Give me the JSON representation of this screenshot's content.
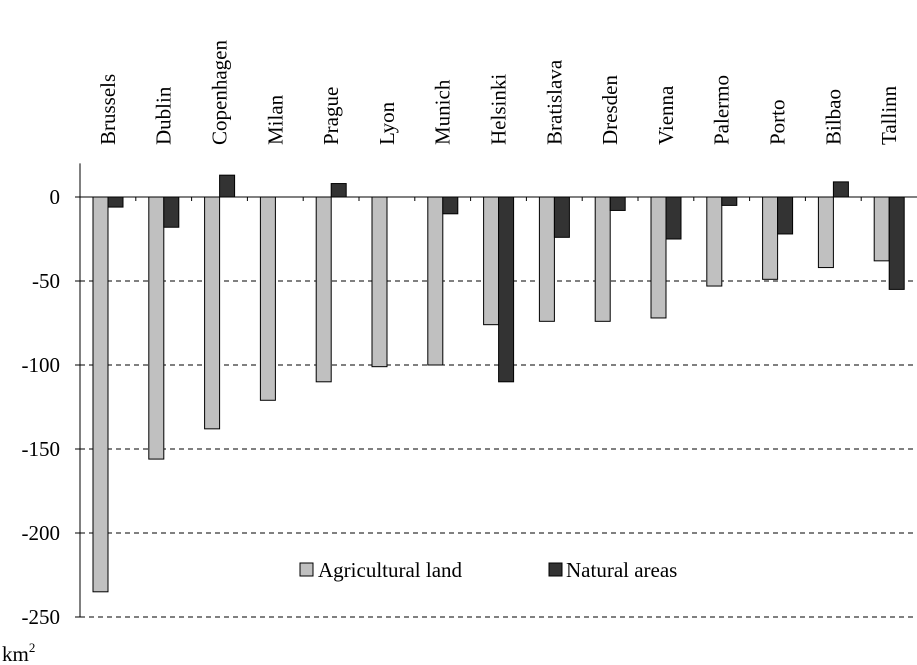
{
  "chart_data": {
    "type": "bar",
    "categories": [
      "Brussels",
      "Dublin",
      "Copenhagen",
      "Milan",
      "Prague",
      "Lyon",
      "Munich",
      "Helsinki",
      "Bratislava",
      "Dresden",
      "Vienna",
      "Palermo",
      "Porto",
      "Bilbao",
      "Tallinn"
    ],
    "series": [
      {
        "name": "Agricultural land",
        "color": "#c0c0c0",
        "values": [
          -235,
          -156,
          -138,
          -121,
          -110,
          -101,
          -100,
          -76,
          -74,
          -74,
          -72,
          -53,
          -49,
          -42,
          -38
        ]
      },
      {
        "name": "Natural areas",
        "color": "#333333",
        "values": [
          -6,
          -18,
          13,
          0,
          8,
          0,
          -10,
          -110,
          -24,
          -8,
          -25,
          -5,
          -22,
          9,
          -55
        ]
      }
    ],
    "ylim": [
      -250,
      20
    ],
    "yticks": [
      0,
      -50,
      -100,
      -150,
      -200,
      -250
    ],
    "ytick_labels": [
      "0",
      "-50",
      "-100",
      "-150",
      "-200",
      "-250"
    ],
    "gridlines": [
      -50,
      -100,
      -150,
      -200,
      -250
    ],
    "ylabel_unit": "km",
    "ylabel_unit_sup": "2",
    "legend_position": "inside-bottom-center"
  }
}
